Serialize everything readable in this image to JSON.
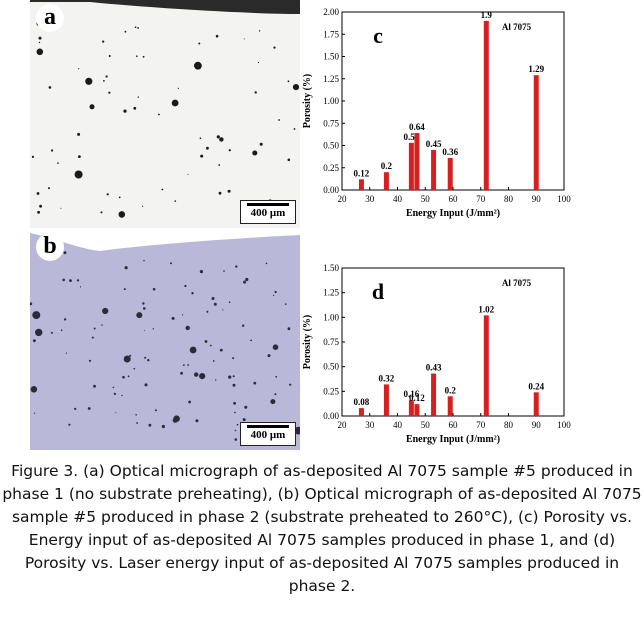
{
  "panels": {
    "a": {
      "letter": "a",
      "scale_label": "400 μm"
    },
    "b": {
      "letter": "b",
      "scale_label": "400 μm"
    }
  },
  "chart_data": [
    {
      "id": "c",
      "type": "bar",
      "panel_letter": "c",
      "annotation": "Al 7075",
      "xlabel": "Energy Input (J/mm²)",
      "ylabel": "Porosity (%)",
      "xlim": [
        20,
        100
      ],
      "ylim": [
        0,
        2.0
      ],
      "xticks": [
        20,
        30,
        40,
        50,
        60,
        70,
        80,
        90,
        100
      ],
      "yticks": [
        "0.00",
        "0.25",
        "0.50",
        "0.75",
        "1.00",
        "1.25",
        "1.50",
        "1.75",
        "2.00"
      ],
      "bar_color": "#d42020",
      "x": [
        27,
        36,
        45,
        47,
        53,
        59,
        72,
        90
      ],
      "values": [
        0.12,
        0.2,
        0.53,
        0.64,
        0.45,
        0.36,
        1.9,
        1.29
      ],
      "labels": [
        "0.12",
        "0.2",
        "0.53",
        "0.64",
        "0.45",
        "0.36",
        "1.9",
        "1.29"
      ]
    },
    {
      "id": "d",
      "type": "bar",
      "panel_letter": "d",
      "annotation": "Al 7075",
      "xlabel": "Energy Input (J/mm²)",
      "ylabel": "Porosity (%)",
      "xlim": [
        20,
        100
      ],
      "ylim": [
        0,
        1.5
      ],
      "xticks": [
        20,
        30,
        40,
        50,
        60,
        70,
        80,
        90,
        100
      ],
      "yticks": [
        "0.00",
        "0.25",
        "0.50",
        "0.75",
        "1.00",
        "1.25",
        "1.50"
      ],
      "bar_color": "#d42020",
      "x": [
        27,
        36,
        45,
        47,
        53,
        59,
        72,
        90
      ],
      "values": [
        0.08,
        0.32,
        0.16,
        0.12,
        0.43,
        0.2,
        1.02,
        0.24
      ],
      "labels": [
        "0.08",
        "0.32",
        "0.16",
        "0.12",
        "0.43",
        "0.2",
        "1.02",
        "0.24"
      ]
    }
  ],
  "caption": "Figure 3. (a) Optical micrograph of as-deposited Al 7075 sample #5 produced in phase 1 (no substrate preheating), (b) Optical micrograph of as-deposited Al 7075 sample #5 produced in phase 2 (substrate preheated to 260°C), (c) Porosity vs. Energy input of as-deposited Al 7075 samples produced in phase 1, and (d) Porosity vs. Laser energy input of as-deposited Al 7075 samples produced in phase 2."
}
